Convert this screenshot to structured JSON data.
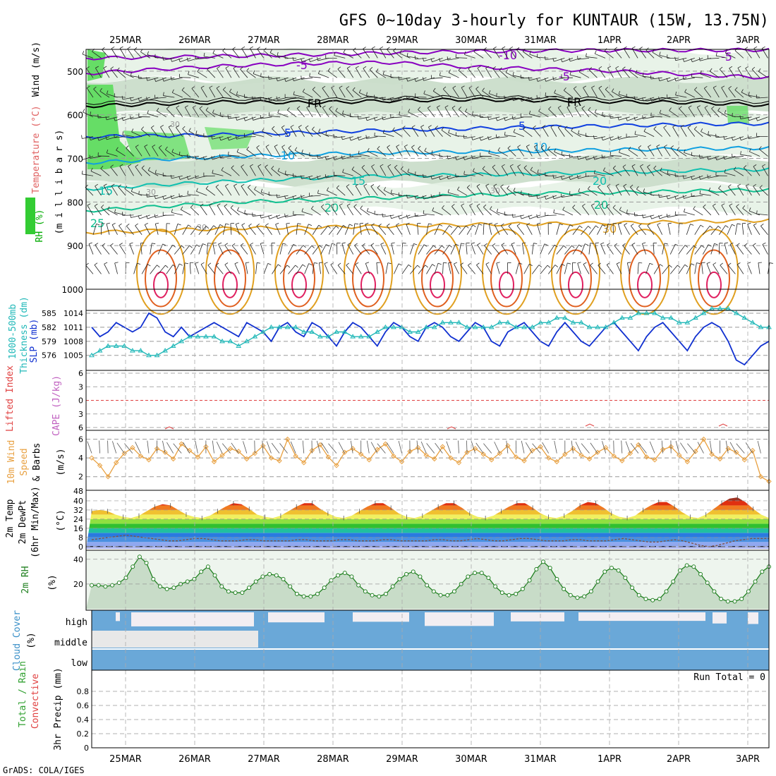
{
  "title": "GFS 0~10day 3-hourly for KUNTAUR (15W, 13.75N)",
  "credit": "GrADS: COLA/IGES",
  "chart_data": {
    "type": "meteogram",
    "x_dates": [
      "25MAR",
      "26MAR",
      "27MAR",
      "28MAR",
      "29MAR",
      "30MAR",
      "31MAR",
      "1APR",
      "2APR",
      "3APR"
    ],
    "panels": {
      "upper_air": {
        "ylabel_parts": [
          "RH (%)",
          "Temperature (°C)",
          "Wind (m/s)"
        ],
        "axis_label": "(m i l l i b a r s)",
        "y_ticks": [
          500,
          600,
          700,
          800,
          900,
          1000
        ],
        "ylim": [
          450,
          1000
        ],
        "contour_labels": [
          "-10",
          "-5",
          "-5",
          "-5",
          "FR",
          "FR",
          "5",
          "5",
          "10",
          "10",
          "15",
          "15",
          "20",
          "20",
          "20",
          "25",
          "30",
          "30",
          "30",
          "30",
          "30"
        ],
        "isotherms": [
          {
            "label": "-10",
            "p": [
              470,
              468,
              465,
              462,
              458,
              455,
              453,
              452,
              452,
              451
            ]
          },
          {
            "label": "-5",
            "p": [
              505,
              495,
              487,
              482,
              480,
              490,
              495,
              500,
              508,
              515
            ]
          },
          {
            "label": "FR",
            "p": [
              580,
              575,
              570,
              572,
              568,
              565,
              567,
              570,
              572,
              578
            ]
          },
          {
            "label": "5",
            "p": [
              650,
              648,
              645,
              640,
              635,
              632,
              628,
              625,
              622,
              620
            ]
          },
          {
            "label": "10",
            "p": [
              710,
              702,
              695,
              690,
              687,
              685,
              683,
              680,
              678,
              676
            ]
          },
          {
            "label": "15",
            "p": [
              770,
              760,
              752,
              745,
              740,
              738,
              735,
              732,
              728,
              725
            ]
          },
          {
            "label": "20",
            "p": [
              820,
              810,
              800,
              795,
              790,
              785,
              780,
              778,
              775,
              772
            ]
          },
          {
            "label": "25",
            "p": [
              870,
              865,
              860,
              858,
              855,
              852,
              850,
              848,
              845,
              842
            ]
          }
        ]
      },
      "slp_thickness": {
        "ylabel_parts": [
          "1000-500mb",
          "Thickness (dm)",
          "SLP (mb)"
        ],
        "thickness_ticks": [
          576,
          579,
          582,
          585
        ],
        "slp_ticks": [
          1005,
          1008,
          1011,
          1014
        ],
        "slp_ylim": [
          1003,
          1014
        ],
        "slp": [
          1011,
          1009,
          1010,
          1012,
          1011,
          1010,
          1011,
          1014,
          1013,
          1010,
          1009,
          1011,
          1009,
          1010,
          1011,
          1012,
          1011,
          1010,
          1009,
          1012,
          1011,
          1010,
          1008,
          1011,
          1012,
          1010,
          1009,
          1012,
          1011,
          1009,
          1007,
          1010,
          1012,
          1011,
          1009,
          1007,
          1010,
          1012,
          1011,
          1009,
          1008,
          1011,
          1012,
          1011,
          1009,
          1008,
          1010,
          1012,
          1011,
          1008,
          1007,
          1010,
          1011,
          1012,
          1010,
          1008,
          1007,
          1010,
          1012,
          1010,
          1008,
          1007,
          1009,
          1011,
          1012,
          1010,
          1008,
          1006,
          1009,
          1011,
          1012,
          1010,
          1008,
          1006,
          1009,
          1011,
          1012,
          1011,
          1008,
          1004,
          1003,
          1005,
          1007,
          1008
        ],
        "thickness": [
          576,
          577,
          578,
          578,
          578,
          577,
          577,
          576,
          576,
          577,
          578,
          579,
          580,
          580,
          580,
          580,
          579,
          579,
          578,
          579,
          580,
          581,
          582,
          582,
          582,
          582,
          581,
          581,
          580,
          580,
          581,
          581,
          580,
          580,
          580,
          581,
          582,
          582,
          582,
          581,
          581,
          582,
          582,
          583,
          583,
          583,
          582,
          582,
          582,
          582,
          583,
          583,
          582,
          582,
          582,
          583,
          583,
          584,
          584,
          583,
          583,
          582,
          582,
          582,
          583,
          584,
          584,
          585,
          585,
          585,
          584,
          584,
          583,
          583,
          584,
          585,
          586,
          586,
          586,
          585,
          584,
          583,
          582,
          582
        ]
      },
      "lifted_cape": {
        "ylabel_parts": [
          "Lifted Index",
          "CAPE (J/kg)"
        ],
        "li_ticks": [
          -6,
          -3,
          0,
          3,
          6
        ],
        "li_ylim": [
          -6,
          6
        ]
      },
      "wind10m": {
        "ylabel_parts": [
          "10m Wind",
          "Speed",
          "& Barbs",
          "(m/s)"
        ],
        "y_ticks": [
          2,
          4,
          6
        ],
        "ylim": [
          1,
          6.5
        ],
        "speed": [
          4.0,
          3.2,
          2.0,
          3.5,
          4.5,
          5.1,
          4.2,
          3.8,
          5.0,
          4.6,
          3.9,
          5.5,
          4.8,
          4.1,
          5.2,
          3.6,
          4.3,
          5.0,
          4.7,
          3.9,
          4.5,
          5.3,
          4.0,
          3.7,
          6.0,
          4.2,
          3.5,
          4.8,
          5.4,
          4.1,
          3.2,
          4.6,
          5.0,
          4.4,
          3.8,
          4.9,
          5.5,
          4.2,
          3.6,
          4.7,
          5.1,
          4.3,
          3.9,
          5.2,
          4.0,
          3.5,
          4.6,
          5.0,
          4.4,
          3.8,
          4.5,
          5.3,
          4.1,
          3.7,
          4.8,
          5.2,
          4.0,
          3.6,
          4.4,
          5.0,
          4.3,
          3.9,
          4.6,
          5.1,
          4.2,
          3.7,
          4.5,
          5.4,
          4.1,
          3.8,
          4.9,
          5.2,
          4.3,
          3.6,
          4.7,
          6.0,
          4.4,
          3.9,
          5.0,
          4.6,
          3.8,
          4.8,
          2.0,
          1.5
        ]
      },
      "temp2m": {
        "ylabel_parts": [
          "2m Temp",
          "2m DewPt",
          "(6hr Min/Max)",
          "(°C)"
        ],
        "y_ticks": [
          0,
          8,
          16,
          24,
          32,
          40
        ],
        "top_tick": "48",
        "ylim": [
          -2,
          48
        ],
        "temp": [
          31,
          32,
          31,
          28,
          26,
          25,
          27,
          31,
          35,
          37,
          36,
          32,
          28,
          26,
          25,
          27,
          31,
          35,
          38,
          37,
          33,
          28,
          26,
          25,
          27,
          31,
          35,
          38,
          38,
          33,
          29,
          26,
          25,
          27,
          31,
          35,
          38,
          38,
          34,
          29,
          26,
          25,
          27,
          31,
          35,
          38,
          38,
          34,
          29,
          26,
          25,
          27,
          31,
          35,
          38,
          38,
          34,
          29,
          26,
          25,
          27,
          31,
          36,
          39,
          38,
          34,
          29,
          26,
          25,
          27,
          32,
          36,
          39,
          39,
          35,
          30,
          26,
          25,
          28,
          33,
          38,
          42,
          43,
          39,
          33,
          28,
          25
        ],
        "dewpt": [
          6,
          7,
          8,
          9,
          10,
          9,
          8,
          7,
          6,
          5,
          5,
          6,
          7,
          7,
          6,
          5,
          5,
          5,
          6,
          6,
          5,
          5,
          5,
          5,
          6,
          6,
          5,
          5,
          5,
          6,
          6,
          5,
          5,
          5,
          6,
          6,
          5,
          5,
          5,
          5,
          6,
          6,
          5,
          5,
          6,
          7,
          6,
          5,
          5,
          6,
          7,
          7,
          6,
          5,
          5,
          5,
          6,
          6,
          5,
          5,
          5,
          6,
          7,
          6,
          5,
          4,
          4,
          5,
          6,
          5,
          3,
          1,
          0,
          1,
          3,
          5,
          6,
          7,
          7,
          7
        ]
      },
      "rh2m": {
        "ylabel_parts": [
          "2m RH",
          "(%)"
        ],
        "y_ticks": [
          20,
          40
        ],
        "ylim": [
          0,
          45
        ],
        "rh": [
          19,
          19,
          18,
          19,
          21,
          25,
          34,
          42,
          37,
          24,
          18,
          16,
          17,
          20,
          22,
          24,
          30,
          34,
          27,
          18,
          14,
          13,
          13,
          17,
          22,
          26,
          28,
          27,
          24,
          18,
          12,
          10,
          10,
          12,
          17,
          23,
          27,
          29,
          26,
          19,
          14,
          11,
          10,
          12,
          18,
          24,
          28,
          30,
          26,
          19,
          14,
          11,
          11,
          14,
          20,
          26,
          29,
          29,
          25,
          18,
          13,
          11,
          12,
          16,
          23,
          32,
          38,
          33,
          24,
          16,
          11,
          9,
          10,
          14,
          22,
          30,
          33,
          31,
          25,
          17,
          11,
          8,
          7,
          8,
          14,
          22,
          31,
          35,
          34,
          28,
          21,
          14,
          8,
          6,
          6,
          8,
          14,
          22,
          30,
          34
        ]
      },
      "cloud": {
        "ylabel_parts": [
          "Cloud Cover",
          "(%)"
        ],
        "levels": [
          "high",
          "middle",
          "low"
        ]
      },
      "precip": {
        "ylabel_parts": [
          "Total / Rain",
          "Convective",
          "3hr Precip (mm)"
        ],
        "y_ticks": [
          "0",
          "0.2",
          "0.4",
          "0.6",
          "0.8"
        ],
        "ylim": [
          0,
          1
        ],
        "run_total": "Run Total = 0"
      }
    }
  },
  "colors": {
    "purple": "#8800c0",
    "black": "#000000",
    "blue": "#1040e0",
    "light_blue": "#10a0e0",
    "teal": "#10c0b0",
    "green_line": "#10c090",
    "orange": "#e0a020",
    "dark_orange": "#e06020",
    "red": "#e02060",
    "rh_light": "#e6f2e6",
    "rh_mid": "#c8dcc8",
    "rh_green": "#66dd66",
    "cloud_blue": "#6aa8d8",
    "cloud_white": "#f2eef2",
    "cloud_grey": "#e8e8e8"
  }
}
